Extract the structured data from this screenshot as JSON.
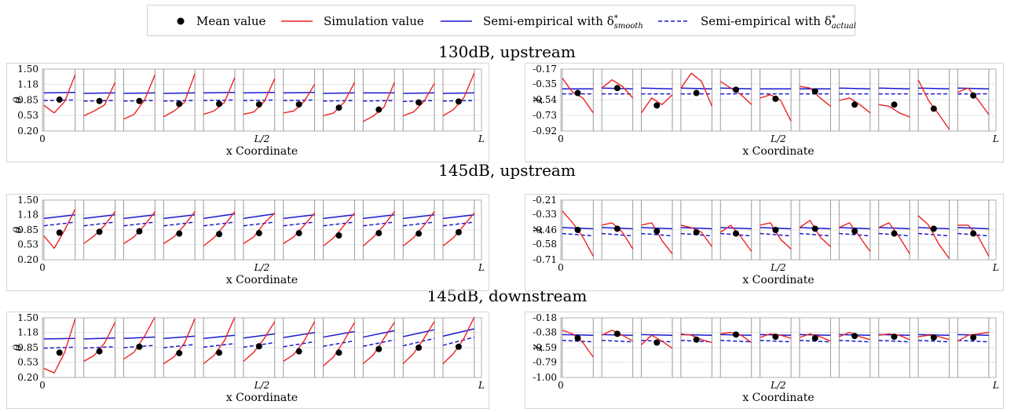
{
  "legend": {
    "entries": [
      {
        "label": "Mean value",
        "style": "marker",
        "color": "#000000"
      },
      {
        "label": "Simulation value",
        "style": "line",
        "color": "#ee2222"
      },
      {
        "label": "Semi-empirical with δ*smooth",
        "base": "Semi-empirical with δ",
        "sup": "*",
        "sub": "smooth",
        "style": "line",
        "color": "#1a1ad0"
      },
      {
        "label": "Semi-empirical with δ*actual",
        "base": "Semi-empirical with δ",
        "sup": "*",
        "sub": "actual",
        "style": "dashed",
        "color": "#1a1ad0"
      }
    ]
  },
  "rows": [
    {
      "title": "130dB, upstream"
    },
    {
      "title": "145dB, upstream"
    },
    {
      "title": "145dB, downstream"
    }
  ],
  "chart_data": [
    {
      "type": "line",
      "row": 0,
      "ylabel": "θ",
      "xlabel": "x Coordinate",
      "xticks": [
        "0",
        "L/2",
        "L"
      ],
      "yticks": [
        0.2,
        0.53,
        0.85,
        1.18,
        1.5
      ],
      "ylim": [
        0.2,
        1.5
      ],
      "mean": [
        0.86,
        0.83,
        0.83,
        0.77,
        0.77,
        0.76,
        0.76,
        0.69,
        0.65,
        0.8,
        0.82
      ],
      "smooth": [
        [
          1.0,
          1.01
        ],
        [
          0.99,
          1.0
        ],
        [
          0.99,
          1.0
        ],
        [
          0.99,
          1.0
        ],
        [
          1.0,
          1.01
        ],
        [
          1.0,
          1.01
        ],
        [
          1.0,
          1.01
        ],
        [
          0.99,
          1.0
        ],
        [
          1.0,
          1.0
        ],
        [
          0.99,
          1.0
        ],
        [
          0.99,
          1.0
        ]
      ],
      "actual": [
        [
          0.84,
          0.85
        ],
        [
          0.83,
          0.84
        ],
        [
          0.83,
          0.84
        ],
        [
          0.83,
          0.84
        ],
        [
          0.84,
          0.85
        ],
        [
          0.84,
          0.85
        ],
        [
          0.84,
          0.85
        ],
        [
          0.83,
          0.84
        ],
        [
          0.83,
          0.84
        ],
        [
          0.82,
          0.84
        ],
        [
          0.83,
          0.84
        ]
      ],
      "sim": [
        [
          0.74,
          0.58,
          0.82,
          1.38
        ],
        [
          0.52,
          0.62,
          0.75,
          1.22
        ],
        [
          0.45,
          0.55,
          0.85,
          1.38
        ],
        [
          0.5,
          0.62,
          0.8,
          1.4
        ],
        [
          0.55,
          0.62,
          0.8,
          1.32
        ],
        [
          0.55,
          0.6,
          0.82,
          1.3
        ],
        [
          0.58,
          0.62,
          0.82,
          1.18
        ],
        [
          0.52,
          0.58,
          0.8,
          1.22
        ],
        [
          0.4,
          0.52,
          0.7,
          1.22
        ],
        [
          0.52,
          0.6,
          0.82,
          1.2
        ],
        [
          0.52,
          0.65,
          0.9,
          1.42
        ]
      ]
    },
    {
      "type": "line",
      "row": 0,
      "ylabel": "χ",
      "xlabel": "x Coordinate",
      "xticks": [
        "0",
        "L/2",
        "L"
      ],
      "yticks": [
        -0.17,
        -0.35,
        -0.54,
        -0.73,
        -0.92
      ],
      "ylim": [
        -0.92,
        -0.17
      ],
      "mean": [
        -0.46,
        -0.4,
        -0.61,
        -0.46,
        -0.42,
        -0.53,
        -0.44,
        -0.6,
        -0.6,
        -0.65,
        -0.49
      ],
      "smooth": [
        [
          -0.41,
          -0.41
        ],
        [
          -0.4,
          -0.41
        ],
        [
          -0.4,
          -0.41
        ],
        [
          -0.4,
          -0.41
        ],
        [
          -0.4,
          -0.41
        ],
        [
          -0.41,
          -0.41
        ],
        [
          -0.41,
          -0.41
        ],
        [
          -0.4,
          -0.41
        ],
        [
          -0.4,
          -0.41
        ],
        [
          -0.4,
          -0.41
        ],
        [
          -0.4,
          -0.41
        ]
      ],
      "actual": [
        [
          -0.47,
          -0.47
        ],
        [
          -0.47,
          -0.47
        ],
        [
          -0.47,
          -0.47
        ],
        [
          -0.47,
          -0.47
        ],
        [
          -0.47,
          -0.47
        ],
        [
          -0.47,
          -0.47
        ],
        [
          -0.47,
          -0.47
        ],
        [
          -0.47,
          -0.47
        ],
        [
          -0.47,
          -0.47
        ],
        [
          -0.47,
          -0.47
        ],
        [
          -0.47,
          -0.47
        ]
      ],
      "sim": [
        [
          -0.28,
          -0.45,
          -0.52,
          -0.7
        ],
        [
          -0.4,
          -0.3,
          -0.38,
          -0.52
        ],
        [
          -0.7,
          -0.52,
          -0.6,
          -0.48
        ],
        [
          -0.4,
          -0.22,
          -0.32,
          -0.62
        ],
        [
          -0.32,
          -0.4,
          -0.48,
          -0.6
        ],
        [
          -0.52,
          -0.48,
          -0.55,
          -0.8
        ],
        [
          -0.38,
          -0.4,
          -0.52,
          -0.62
        ],
        [
          -0.55,
          -0.52,
          -0.6,
          -0.7
        ],
        [
          -0.6,
          -0.62,
          -0.7,
          -0.75
        ],
        [
          -0.3,
          -0.55,
          -0.72,
          -0.9
        ],
        [
          -0.45,
          -0.4,
          -0.55,
          -0.72
        ]
      ]
    },
    {
      "type": "line",
      "row": 1,
      "ylabel": "θ",
      "xlabel": "x Coordinate",
      "xticks": [
        "0",
        "L/2",
        "L"
      ],
      "yticks": [
        0.2,
        0.53,
        0.85,
        1.18,
        1.5
      ],
      "ylim": [
        0.2,
        1.5
      ],
      "mean": [
        0.79,
        0.81,
        0.82,
        0.77,
        0.76,
        0.78,
        0.78,
        0.73,
        0.78,
        0.77,
        0.8
      ],
      "smooth": [
        [
          1.1,
          1.18
        ],
        [
          1.1,
          1.18
        ],
        [
          1.1,
          1.18
        ],
        [
          1.1,
          1.18
        ],
        [
          1.1,
          1.2
        ],
        [
          1.1,
          1.2
        ],
        [
          1.1,
          1.18
        ],
        [
          1.1,
          1.18
        ],
        [
          1.1,
          1.18
        ],
        [
          1.1,
          1.18
        ],
        [
          1.1,
          1.18
        ]
      ],
      "actual": [
        [
          0.94,
          1.02
        ],
        [
          0.94,
          1.02
        ],
        [
          0.94,
          1.02
        ],
        [
          0.94,
          1.02
        ],
        [
          0.94,
          1.02
        ],
        [
          0.94,
          1.02
        ],
        [
          0.94,
          1.02
        ],
        [
          0.94,
          1.02
        ],
        [
          0.94,
          1.02
        ],
        [
          0.94,
          1.02
        ],
        [
          0.94,
          1.02
        ]
      ],
      "sim": [
        [
          0.72,
          0.45,
          0.85,
          1.3
        ],
        [
          0.55,
          0.72,
          0.95,
          1.25
        ],
        [
          0.55,
          0.7,
          0.95,
          1.25
        ],
        [
          0.55,
          0.7,
          0.95,
          1.25
        ],
        [
          0.5,
          0.68,
          0.95,
          1.25
        ],
        [
          0.55,
          0.7,
          1.0,
          1.22
        ],
        [
          0.55,
          0.7,
          0.95,
          1.22
        ],
        [
          0.5,
          0.68,
          0.95,
          1.22
        ],
        [
          0.5,
          0.7,
          0.95,
          1.25
        ],
        [
          0.5,
          0.68,
          0.95,
          1.25
        ],
        [
          0.5,
          0.68,
          0.95,
          1.22
        ]
      ]
    },
    {
      "type": "line",
      "row": 1,
      "ylabel": "χ",
      "xlabel": "x Coordinate",
      "xticks": [
        "0",
        "L/2",
        "L"
      ],
      "yticks": [
        -0.21,
        -0.33,
        -0.46,
        -0.58,
        -0.71
      ],
      "ylim": [
        -0.71,
        -0.21
      ],
      "mean": [
        -0.46,
        -0.45,
        -0.47,
        -0.48,
        -0.49,
        -0.46,
        -0.45,
        -0.47,
        -0.49,
        -0.45,
        -0.49
      ],
      "smooth": [
        [
          -0.44,
          -0.45
        ],
        [
          -0.44,
          -0.45
        ],
        [
          -0.44,
          -0.45
        ],
        [
          -0.44,
          -0.45
        ],
        [
          -0.44,
          -0.45
        ],
        [
          -0.44,
          -0.45
        ],
        [
          -0.44,
          -0.45
        ],
        [
          -0.44,
          -0.45
        ],
        [
          -0.44,
          -0.45
        ],
        [
          -0.44,
          -0.45
        ],
        [
          -0.44,
          -0.45
        ]
      ],
      "actual": [
        [
          -0.49,
          -0.51
        ],
        [
          -0.49,
          -0.51
        ],
        [
          -0.49,
          -0.51
        ],
        [
          -0.49,
          -0.51
        ],
        [
          -0.49,
          -0.51
        ],
        [
          -0.49,
          -0.51
        ],
        [
          -0.49,
          -0.51
        ],
        [
          -0.49,
          -0.51
        ],
        [
          -0.49,
          -0.51
        ],
        [
          -0.49,
          -0.51
        ],
        [
          -0.49,
          -0.51
        ]
      ],
      "sim": [
        [
          -0.3,
          -0.4,
          -0.52,
          -0.68
        ],
        [
          -0.42,
          -0.4,
          -0.48,
          -0.62
        ],
        [
          -0.42,
          -0.4,
          -0.55,
          -0.66
        ],
        [
          -0.42,
          -0.44,
          -0.48,
          -0.6
        ],
        [
          -0.48,
          -0.42,
          -0.52,
          -0.64
        ],
        [
          -0.42,
          -0.4,
          -0.54,
          -0.62
        ],
        [
          -0.44,
          -0.38,
          -0.52,
          -0.6
        ],
        [
          -0.44,
          -0.4,
          -0.52,
          -0.64
        ],
        [
          -0.44,
          -0.4,
          -0.52,
          -0.66
        ],
        [
          -0.34,
          -0.42,
          -0.58,
          -0.7
        ],
        [
          -0.42,
          -0.42,
          -0.52,
          -0.68
        ]
      ]
    },
    {
      "type": "line",
      "row": 2,
      "ylabel": "θ",
      "xlabel": "x Coordinate",
      "xticks": [
        "0",
        "L/2",
        "L"
      ],
      "yticks": [
        0.2,
        0.53,
        0.85,
        1.18,
        1.5
      ],
      "ylim": [
        0.2,
        1.5
      ],
      "mean": [
        0.74,
        0.77,
        0.87,
        0.73,
        0.74,
        0.88,
        0.77,
        0.74,
        0.82,
        0.85,
        0.87
      ],
      "smooth": [
        [
          1.04,
          1.05
        ],
        [
          1.04,
          1.06
        ],
        [
          1.05,
          1.08
        ],
        [
          1.05,
          1.1
        ],
        [
          1.05,
          1.12
        ],
        [
          1.06,
          1.15
        ],
        [
          1.07,
          1.18
        ],
        [
          1.08,
          1.2
        ],
        [
          1.08,
          1.22
        ],
        [
          1.09,
          1.24
        ],
        [
          1.1,
          1.26
        ]
      ],
      "actual": [
        [
          0.84,
          0.86
        ],
        [
          0.84,
          0.87
        ],
        [
          0.85,
          0.9
        ],
        [
          0.85,
          0.92
        ],
        [
          0.86,
          0.94
        ],
        [
          0.86,
          0.96
        ],
        [
          0.87,
          0.98
        ],
        [
          0.88,
          1.0
        ],
        [
          0.88,
          1.02
        ],
        [
          0.89,
          1.05
        ],
        [
          0.9,
          1.08
        ]
      ],
      "sim": [
        [
          0.4,
          0.3,
          0.75,
          1.48
        ],
        [
          0.55,
          0.68,
          0.95,
          1.4
        ],
        [
          0.6,
          0.75,
          1.1,
          1.52
        ],
        [
          0.5,
          0.65,
          0.95,
          1.48
        ],
        [
          0.5,
          0.68,
          1.0,
          1.52
        ],
        [
          0.55,
          0.75,
          1.05,
          1.42
        ],
        [
          0.55,
          0.7,
          1.0,
          1.42
        ],
        [
          0.45,
          0.65,
          1.0,
          1.4
        ],
        [
          0.5,
          0.7,
          1.05,
          1.4
        ],
        [
          0.5,
          0.72,
          1.05,
          1.42
        ],
        [
          0.5,
          0.72,
          1.05,
          1.52
        ]
      ]
    },
    {
      "type": "line",
      "row": 2,
      "ylabel": "χ",
      "xlabel": "x Coordinate",
      "xticks": [
        "0",
        "L/2",
        "L"
      ],
      "yticks": [
        -0.18,
        -0.38,
        -0.59,
        -0.79,
        -1.0
      ],
      "ylim": [
        -1.0,
        -0.18
      ],
      "mean": [
        -0.46,
        -0.4,
        -0.52,
        -0.48,
        -0.41,
        -0.44,
        -0.46,
        -0.43,
        -0.44,
        -0.45,
        -0.45
      ],
      "smooth": [
        [
          -0.41,
          -0.42
        ],
        [
          -0.41,
          -0.42
        ],
        [
          -0.41,
          -0.42
        ],
        [
          -0.41,
          -0.42
        ],
        [
          -0.41,
          -0.42
        ],
        [
          -0.41,
          -0.42
        ],
        [
          -0.41,
          -0.42
        ],
        [
          -0.41,
          -0.42
        ],
        [
          -0.41,
          -0.42
        ],
        [
          -0.41,
          -0.42
        ],
        [
          -0.41,
          -0.42
        ]
      ],
      "actual": [
        [
          -0.49,
          -0.51
        ],
        [
          -0.49,
          -0.51
        ],
        [
          -0.49,
          -0.51
        ],
        [
          -0.49,
          -0.51
        ],
        [
          -0.49,
          -0.51
        ],
        [
          -0.49,
          -0.51
        ],
        [
          -0.49,
          -0.51
        ],
        [
          -0.49,
          -0.51
        ],
        [
          -0.49,
          -0.51
        ],
        [
          -0.49,
          -0.51
        ],
        [
          -0.49,
          -0.51
        ]
      ],
      "sim": [
        [
          -0.35,
          -0.4,
          -0.52,
          -0.72
        ],
        [
          -0.42,
          -0.35,
          -0.42,
          -0.5
        ],
        [
          -0.55,
          -0.42,
          -0.5,
          -0.6
        ],
        [
          -0.4,
          -0.42,
          -0.48,
          -0.52
        ],
        [
          -0.4,
          -0.38,
          -0.42,
          -0.52
        ],
        [
          -0.45,
          -0.4,
          -0.42,
          -0.46
        ],
        [
          -0.45,
          -0.4,
          -0.44,
          -0.5
        ],
        [
          -0.44,
          -0.38,
          -0.44,
          -0.48
        ],
        [
          -0.42,
          -0.4,
          -0.42,
          -0.48
        ],
        [
          -0.44,
          -0.42,
          -0.44,
          -0.48
        ],
        [
          -0.5,
          -0.42,
          -0.4,
          -0.38
        ]
      ]
    }
  ]
}
